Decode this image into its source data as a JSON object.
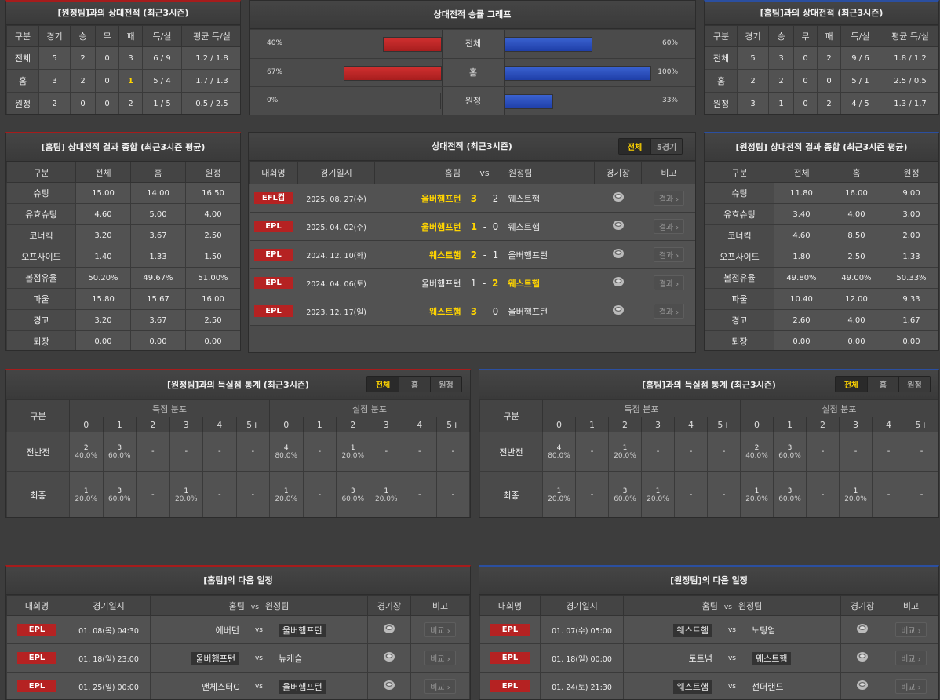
{
  "colors": {
    "away_accent": "#a61c1c",
    "home_accent": "#2b4fa0",
    "highlight": "#ffd400",
    "league_badge": "#b52222"
  },
  "h2h_vs_away": {
    "title": "[원정팀]과의 상대전적 (최근3시즌)",
    "headers": [
      "구분",
      "경기",
      "승",
      "무",
      "패",
      "득/실",
      "평균 득/실"
    ],
    "rows": [
      [
        "전체",
        "5",
        "2",
        "0",
        "3",
        "6 / 9",
        "1.2 / 1.8"
      ],
      [
        "홈",
        "3",
        "2",
        "0",
        "1",
        "5 / 4",
        "1.7 / 1.3"
      ],
      [
        "원정",
        "2",
        "0",
        "0",
        "2",
        "1 / 5",
        "0.5 / 2.5"
      ]
    ],
    "highlight": [
      [
        2,
        4
      ],
      [
        2,
        5
      ]
    ]
  },
  "h2h_vs_home": {
    "title": "[홈팀]과의 상대전적 (최근3시즌)",
    "headers": [
      "구분",
      "경기",
      "승",
      "무",
      "패",
      "득/실",
      "평균 득/실"
    ],
    "rows": [
      [
        "전체",
        "5",
        "3",
        "0",
        "2",
        "9 / 6",
        "1.8 / 1.2"
      ],
      [
        "홈",
        "2",
        "2",
        "0",
        "0",
        "5 / 1",
        "2.5 / 0.5"
      ],
      [
        "원정",
        "3",
        "1",
        "0",
        "2",
        "4 / 5",
        "1.3 / 1.7"
      ]
    ],
    "highlight": []
  },
  "win_graph": {
    "title": "상대전적 승률 그래프",
    "rows": [
      {
        "label": "전체",
        "left_pct": 40,
        "left_text": "40%",
        "right_pct": 60,
        "right_text": "60%"
      },
      {
        "label": "홈",
        "left_pct": 67,
        "left_text": "67%",
        "right_pct": 100,
        "right_text": "100%"
      },
      {
        "label": "원정",
        "left_pct": 0,
        "left_text": "0%",
        "right_pct": 33,
        "right_text": "33%"
      }
    ]
  },
  "summary_home": {
    "title": "[홈팀] 상대전적 결과 종합 (최근3시즌 평균)",
    "headers": [
      "구분",
      "전체",
      "홈",
      "원정"
    ],
    "rows": [
      [
        "슈팅",
        "15.00",
        "14.00",
        "16.50"
      ],
      [
        "유효슈팅",
        "4.60",
        "5.00",
        "4.00"
      ],
      [
        "코너킥",
        "3.20",
        "3.67",
        "2.50"
      ],
      [
        "오프사이드",
        "1.40",
        "1.33",
        "1.50"
      ],
      [
        "볼점유율",
        "50.20%",
        "49.67%",
        "51.00%"
      ],
      [
        "파울",
        "15.80",
        "15.67",
        "16.00"
      ],
      [
        "경고",
        "3.20",
        "3.67",
        "2.50"
      ],
      [
        "퇴장",
        "0.00",
        "0.00",
        "0.00"
      ]
    ]
  },
  "summary_away": {
    "title": "[원정팀] 상대전적 결과 종합 (최근3시즌 평균)",
    "headers": [
      "구분",
      "전체",
      "홈",
      "원정"
    ],
    "rows": [
      [
        "슈팅",
        "11.80",
        "16.00",
        "9.00"
      ],
      [
        "유효슈팅",
        "3.40",
        "4.00",
        "3.00"
      ],
      [
        "코너킥",
        "4.60",
        "8.50",
        "2.00"
      ],
      [
        "오프사이드",
        "1.80",
        "2.50",
        "1.33"
      ],
      [
        "볼점유율",
        "49.80%",
        "49.00%",
        "50.33%"
      ],
      [
        "파울",
        "10.40",
        "12.00",
        "9.33"
      ],
      [
        "경고",
        "2.60",
        "4.00",
        "1.67"
      ],
      [
        "퇴장",
        "0.00",
        "0.00",
        "0.00"
      ]
    ]
  },
  "h2h_matches": {
    "title": "상대전적 (최근3시즌)",
    "tabs": [
      "전체",
      "5경기"
    ],
    "active_tab": 0,
    "headers": {
      "league": "대회명",
      "date": "경기일시",
      "home": "홈팀",
      "vs": "vs",
      "away": "원정팀",
      "venue": "경기장",
      "note": "비고"
    },
    "matches": [
      {
        "league": "EFL컵",
        "date": "2025. 08. 27(수)",
        "home": "울버햄프턴",
        "home_score": "3",
        "away_score": "2",
        "away": "웨스트햄",
        "winner": "home",
        "button": "결과"
      },
      {
        "league": "EPL",
        "date": "2025. 04. 02(수)",
        "home": "울버햄프턴",
        "home_score": "1",
        "away_score": "0",
        "away": "웨스트햄",
        "winner": "home",
        "button": "결과"
      },
      {
        "league": "EPL",
        "date": "2024. 12. 10(화)",
        "home": "웨스트햄",
        "home_score": "2",
        "away_score": "1",
        "away": "울버햄프턴",
        "winner": "home",
        "button": "결과"
      },
      {
        "league": "EPL",
        "date": "2024. 04. 06(토)",
        "home": "울버햄프턴",
        "home_score": "1",
        "away_score": "2",
        "away": "웨스트햄",
        "winner": "away",
        "button": "결과"
      },
      {
        "league": "EPL",
        "date": "2023. 12. 17(일)",
        "home": "웨스트햄",
        "home_score": "3",
        "away_score": "0",
        "away": "울버햄프턴",
        "winner": "home",
        "button": "결과"
      }
    ]
  },
  "goals_vs_away": {
    "title": "[원정팀]과의 득실점 통계 (최근3시즌)",
    "tabs": [
      "전체",
      "홈",
      "원정"
    ],
    "active_tab": 0,
    "gubun": "구분",
    "scored": "득점 분포",
    "conceded": "실점 분포",
    "buckets": [
      "0",
      "1",
      "2",
      "3",
      "4",
      "5+"
    ],
    "rows": [
      {
        "label": "전반전",
        "cells": [
          [
            "2",
            "40.0%"
          ],
          [
            "3",
            "60.0%"
          ],
          "-",
          "-",
          "-",
          "-",
          [
            "4",
            "80.0%"
          ],
          "-",
          [
            "1",
            "20.0%"
          ],
          "-",
          "-",
          "-"
        ]
      },
      {
        "label": "최종",
        "cells": [
          [
            "1",
            "20.0%"
          ],
          [
            "3",
            "60.0%"
          ],
          "-",
          [
            "1",
            "20.0%"
          ],
          "-",
          "-",
          [
            "1",
            "20.0%"
          ],
          "-",
          [
            "3",
            "60.0%"
          ],
          [
            "1",
            "20.0%"
          ],
          "-",
          "-"
        ]
      }
    ]
  },
  "goals_vs_home": {
    "title": "[홈팀]과의 득실점 통계 (최근3시즌)",
    "tabs": [
      "전체",
      "홈",
      "원정"
    ],
    "active_tab": 0,
    "gubun": "구분",
    "scored": "득점 분포",
    "conceded": "실점 분포",
    "buckets": [
      "0",
      "1",
      "2",
      "3",
      "4",
      "5+"
    ],
    "rows": [
      {
        "label": "전반전",
        "cells": [
          [
            "4",
            "80.0%"
          ],
          "-",
          [
            "1",
            "20.0%"
          ],
          "-",
          "-",
          "-",
          [
            "2",
            "40.0%"
          ],
          [
            "3",
            "60.0%"
          ],
          "-",
          "-",
          "-",
          "-"
        ]
      },
      {
        "label": "최종",
        "cells": [
          [
            "1",
            "20.0%"
          ],
          "-",
          [
            "3",
            "60.0%"
          ],
          [
            "1",
            "20.0%"
          ],
          "-",
          "-",
          [
            "1",
            "20.0%"
          ],
          [
            "3",
            "60.0%"
          ],
          "-",
          [
            "1",
            "20.0%"
          ],
          "-",
          "-"
        ]
      }
    ]
  },
  "next_home": {
    "title": "[홈팀]의 다음 일정",
    "headers": {
      "league": "대회명",
      "date": "경기일시",
      "home": "홈팀",
      "vs": "vs",
      "away": "원정팀",
      "venue": "경기장",
      "note": "비고"
    },
    "matches": [
      {
        "league": "EPL",
        "date": "01. 08(목) 04:30",
        "home": "에버턴",
        "away": "울버햄프턴",
        "highlight": "away",
        "button": "비교"
      },
      {
        "league": "EPL",
        "date": "01. 18(일) 23:00",
        "home": "울버햄프턴",
        "away": "뉴캐슬",
        "highlight": "home",
        "button": "비교"
      },
      {
        "league": "EPL",
        "date": "01. 25(일) 00:00",
        "home": "맨체스터C",
        "away": "울버햄프턴",
        "highlight": "away",
        "button": "비교"
      }
    ]
  },
  "next_away": {
    "title": "[원정팀]의 다음 일정",
    "headers": {
      "league": "대회명",
      "date": "경기일시",
      "home": "홈팀",
      "vs": "vs",
      "away": "원정팀",
      "venue": "경기장",
      "note": "비고"
    },
    "matches": [
      {
        "league": "EPL",
        "date": "01. 07(수) 05:00",
        "home": "웨스트햄",
        "away": "노팅엄",
        "highlight": "home",
        "button": "비교"
      },
      {
        "league": "EPL",
        "date": "01. 18(일) 00:00",
        "home": "토트넘",
        "away": "웨스트햄",
        "highlight": "away",
        "button": "비교"
      },
      {
        "league": "EPL",
        "date": "01. 24(토) 21:30",
        "home": "웨스트햄",
        "away": "선더랜드",
        "highlight": "home",
        "button": "비교"
      }
    ]
  }
}
